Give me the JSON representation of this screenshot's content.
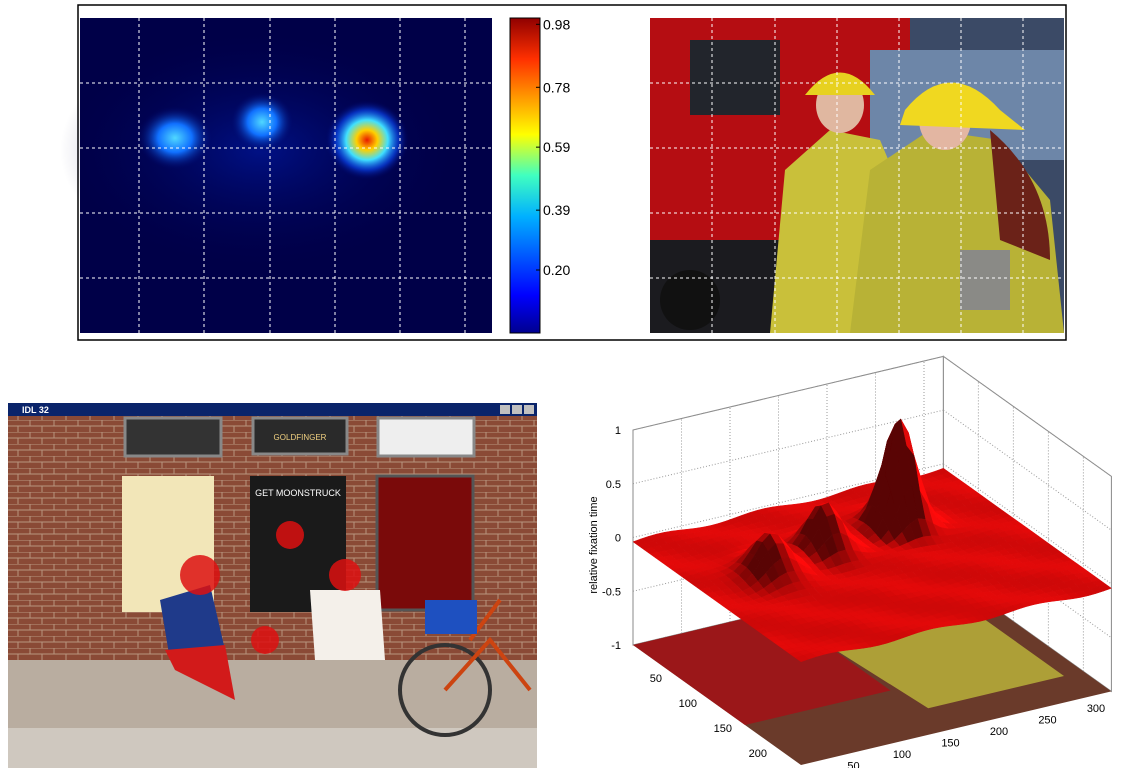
{
  "heatmap_colorbar": {
    "clim": [
      0,
      1
    ],
    "ticks": [
      0.98,
      0.78,
      0.59,
      0.39,
      {
        "value": 0.2,
        "label": "0.20"
      }
    ]
  },
  "window": {
    "title": "IDL 32",
    "posters": [
      "GOLDFINGER",
      "GET MOONSTRUCK"
    ]
  },
  "surface_plot": {
    "zlabel": "relative fixation time",
    "zlim": [
      -1,
      1
    ],
    "zticks": [
      1,
      0.5,
      0,
      -0.5,
      -1
    ],
    "xlim": [
      0,
      320
    ],
    "xticks": [
      50,
      100,
      150,
      200,
      250,
      300
    ],
    "ylim": [
      0,
      240
    ],
    "yticks": [
      50,
      100,
      150,
      200
    ]
  }
}
